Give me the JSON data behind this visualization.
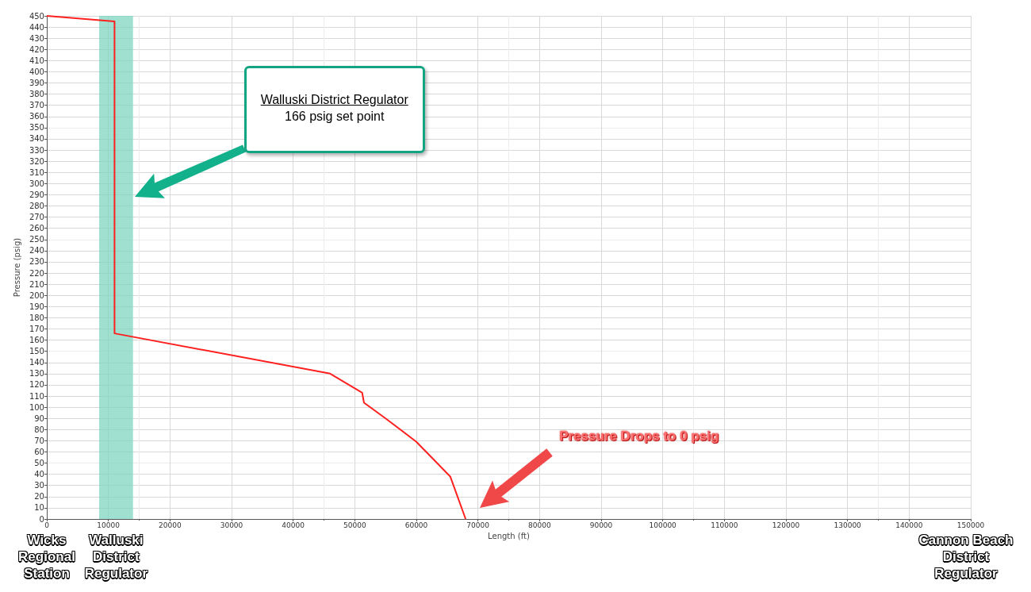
{
  "chart_data": {
    "type": "line",
    "xlabel": "Length (ft)",
    "ylabel": "Pressure (psig)",
    "series": [
      {
        "color": "#ff2020",
        "x": [
          0,
          11000,
          11000,
          46000,
          51200,
          51500,
          55000,
          60000,
          65500,
          68000
        ],
        "values": [
          450,
          445,
          166,
          130,
          113,
          104,
          90,
          69,
          38,
          0
        ]
      }
    ],
    "xlim": [
      0,
      150000
    ],
    "xticks": [
      0,
      10000,
      20000,
      30000,
      40000,
      50000,
      60000,
      70000,
      80000,
      90000,
      100000,
      110000,
      120000,
      130000,
      140000,
      150000
    ],
    "ylim": [
      0,
      450
    ],
    "yticks": [
      0,
      10,
      20,
      30,
      40,
      50,
      60,
      70,
      80,
      90,
      100,
      110,
      120,
      130,
      140,
      150,
      160,
      170,
      180,
      190,
      200,
      210,
      220,
      230,
      240,
      250,
      260,
      270,
      280,
      290,
      300,
      310,
      320,
      330,
      340,
      350,
      360,
      370,
      380,
      390,
      400,
      410,
      420,
      430,
      440,
      450
    ],
    "grid": true,
    "marker": "none",
    "line_style": "solid",
    "bands": [
      {
        "axis": "x",
        "from": 8500,
        "to": 14000,
        "color": "#7fd6c2"
      }
    ],
    "annotations": [
      "Walluski District Regulator",
      "166 psig set point",
      "Pressure Drops to 0 psig",
      "Wicks Regional Station",
      "Walluski District Regulator",
      "Cannon Beach District Regulator"
    ]
  }
}
